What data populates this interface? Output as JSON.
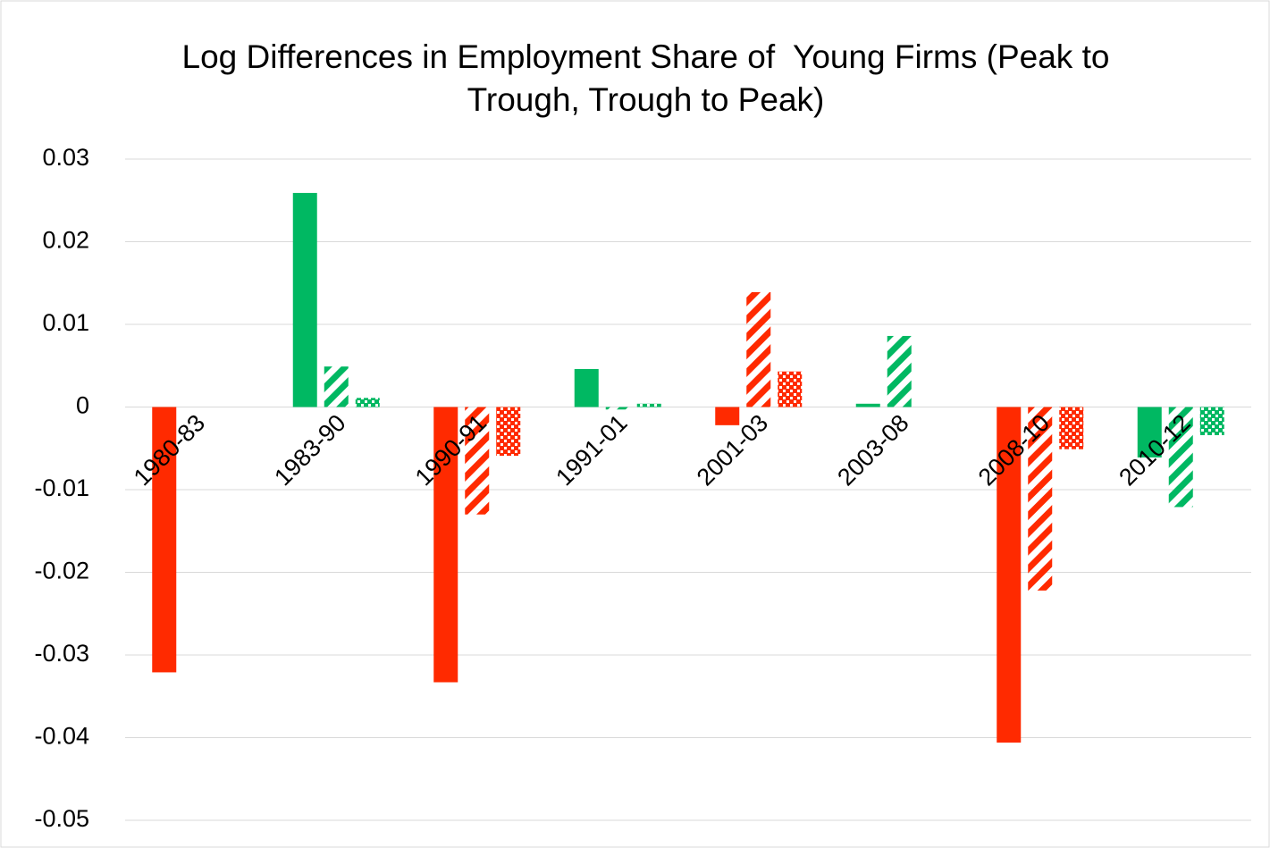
{
  "chart_data": {
    "type": "bar",
    "title": "Log Differences in Employment Share of  Young Firms (Peak to Trough, Trough to Peak)",
    "categories": [
      "1980-83",
      "1983-90",
      "1990-91",
      "1991-01",
      "2001-03",
      "2003-08",
      "2008-10",
      "2010-12"
    ],
    "category_colors": [
      "#ff2a00",
      "#00b862",
      "#ff2a00",
      "#00b862",
      "#ff2a00",
      "#00b862",
      "#ff2a00",
      "#00b862"
    ],
    "series": [
      {
        "pattern": "solid",
        "values": [
          -0.0321,
          0.0259,
          -0.0333,
          0.0046,
          -0.0022,
          0.0004,
          -0.0406,
          -0.0061
        ]
      },
      {
        "pattern": "hatch",
        "values": [
          null,
          0.0049,
          -0.013,
          -0.0003,
          0.0139,
          0.0086,
          -0.0222,
          -0.0121
        ]
      },
      {
        "pattern": "checker",
        "values": [
          null,
          0.0011,
          -0.0059,
          0.0004,
          0.0043,
          null,
          -0.0051,
          -0.0034
        ]
      }
    ],
    "ylim": [
      -0.05,
      0.03
    ],
    "yticks": [
      0.03,
      0.02,
      0.01,
      0,
      -0.01,
      -0.02,
      -0.03,
      -0.04,
      -0.05
    ],
    "grid": true
  }
}
